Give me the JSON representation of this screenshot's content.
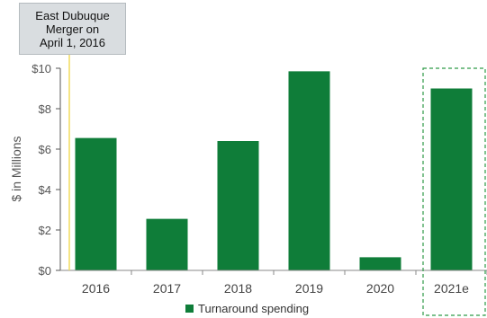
{
  "chart_data": {
    "type": "bar",
    "categories": [
      "2016",
      "2017",
      "2018",
      "2019",
      "2020",
      "2021e"
    ],
    "series": [
      {
        "name": "Turnaround spending",
        "values": [
          6.55,
          2.55,
          6.4,
          9.85,
          0.65,
          9.0
        ]
      }
    ],
    "ylabel": "$ in Millions",
    "xlabel": "",
    "ylim": [
      0,
      10
    ],
    "yticks": [
      0,
      2,
      4,
      6,
      8,
      10
    ],
    "ytick_labels": [
      "$0",
      "$2",
      "$4",
      "$6",
      "$8",
      "$10"
    ],
    "grid": false,
    "legend_position": "bottom",
    "annotation": {
      "lines": [
        "East Dubuque",
        "Merger on",
        "April 1, 2016"
      ],
      "marker_category": "2016"
    },
    "highlight_category": "2021e",
    "colors": {
      "bar": "#0f7d39",
      "marker_line": "#f2dc5d",
      "highlight_box": "#2e9a47",
      "axis": "#555555"
    }
  }
}
